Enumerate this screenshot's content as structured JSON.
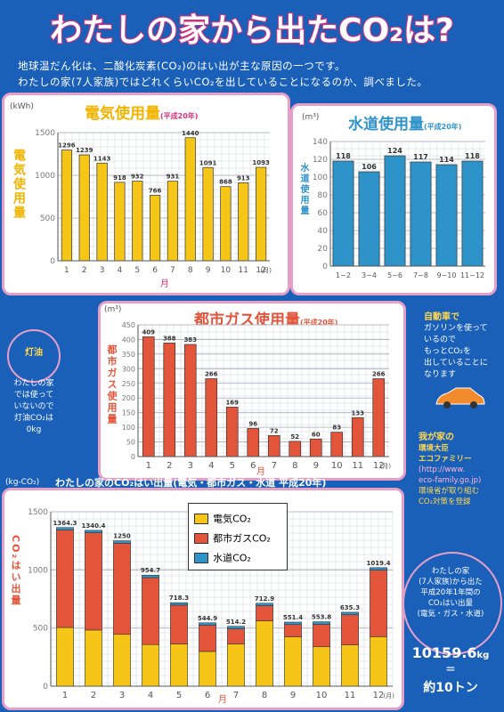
{
  "title": {
    "main": "わたしの家から出たCO₂は?"
  },
  "intro": {
    "line1": "地球温だん化は、二酸化炭素(CO₂)のはい出が主な原因の一つです。",
    "line2": "わたしの家(7人家族)ではどれくらいCO₂を出していることになるのか、調べました。"
  },
  "colors": {
    "electric": "#f5c518",
    "gas": "#e2553a",
    "water": "#2e93c9",
    "border": "#e6a0c8",
    "background": "#1a5fb8"
  },
  "electric": {
    "title": "電気使用量",
    "period": "(平成20年)",
    "unit": "(kWh)",
    "ylabel": "電気使用量",
    "xunit": "(月)",
    "xaxis_label": "月",
    "chart_data": {
      "type": "bar",
      "categories": [
        "1",
        "2",
        "3",
        "4",
        "5",
        "6",
        "7",
        "8",
        "9",
        "10",
        "11",
        "12"
      ],
      "values": [
        1296,
        1239,
        1143,
        918,
        932,
        766,
        931,
        1440,
        1091,
        868,
        913,
        1093
      ],
      "ylim": [
        0,
        1500
      ],
      "yticks": [
        0,
        500,
        1000,
        1500
      ]
    }
  },
  "water": {
    "title": "水道使用量",
    "period": "(平成20年)",
    "unit": "(m³)",
    "ylabel": "水道使用量",
    "chart_data": {
      "type": "bar",
      "categories": [
        "1~2",
        "3~4",
        "5~6",
        "7~8",
        "9~10",
        "11~12"
      ],
      "values": [
        118,
        106,
        124,
        117,
        114,
        118
      ],
      "ylim": [
        0,
        140
      ],
      "yticks": [
        0,
        20,
        40,
        60,
        80,
        100,
        120,
        140
      ]
    }
  },
  "gas": {
    "title": "都市ガス使用量",
    "period": "(平成20年)",
    "unit": "(m³)",
    "ylabel": "都市ガス使用量",
    "xunit": "(月)",
    "xaxis_label": "月",
    "chart_data": {
      "type": "bar",
      "categories": [
        "1",
        "2",
        "3",
        "4",
        "5",
        "6",
        "7",
        "8",
        "9",
        "10",
        "11",
        "12"
      ],
      "values": [
        409,
        388,
        383,
        266,
        169,
        96,
        72,
        52,
        60,
        83,
        133,
        266
      ],
      "ylim": [
        0,
        450
      ],
      "yticks": [
        0,
        50,
        100,
        150,
        200,
        250,
        300,
        350,
        400,
        450
      ]
    }
  },
  "co2": {
    "title": "わたしの家のCO₂はい出量(電気・都市ガス・水道 平成20年)",
    "unit": "(kg-CO₂)",
    "ylabel": "CO₂はい出量",
    "xunit": "(月)",
    "xaxis_label": "月",
    "legend": [
      "電気CO₂",
      "都市ガスCO₂",
      "水道CO₂"
    ],
    "chart_data": {
      "type": "bar",
      "stacked": true,
      "categories": [
        "1",
        "2",
        "3",
        "4",
        "5",
        "6",
        "7",
        "8",
        "9",
        "10",
        "11",
        "12"
      ],
      "totals": [
        "1364.3",
        "1340.4",
        "1250",
        "954.7",
        "718.3",
        "544.9",
        "514.2",
        "712.9",
        "551.4",
        "553.8",
        "635.3",
        "1019.4"
      ],
      "series": [
        {
          "name": "電気CO₂",
          "values": [
            505,
            483,
            446,
            358,
            363,
            299,
            363,
            562,
            425,
            339,
            356,
            426
          ]
        },
        {
          "name": "都市ガスCO₂",
          "values": [
            838,
            836,
            783,
            575,
            334,
            225,
            130,
            130,
            105,
            193,
            258,
            572
          ]
        },
        {
          "name": "水道CO₂",
          "values": [
            21,
            21,
            21,
            22,
            21,
            21,
            21,
            21,
            21,
            22,
            21,
            21
          ]
        }
      ],
      "ylim": [
        0,
        1500
      ],
      "yticks": [
        0,
        500,
        1000,
        1500
      ]
    }
  },
  "kerosene": {
    "title": "灯油",
    "lines": [
      "わたしの家",
      "では使って",
      "いないので",
      "灯油CO₂は",
      "0kg"
    ]
  },
  "car": {
    "lines": [
      "自動車で",
      "ガソリンを使って",
      "いるので",
      "もっとCO₂を",
      "出していることに",
      "なります"
    ]
  },
  "eco": {
    "lines": [
      "我が家の",
      "環境大臣",
      "エコファミリー",
      "(http://www.",
      "eco-family.go.jp)",
      "環境省が取り組む",
      "CO₂対策を登録"
    ]
  },
  "summary": {
    "lines": [
      "わたしの家",
      "(7人家族)から出た",
      "平成20年1年間の",
      "CO₂はい出量",
      "(電気・ガス・水道)"
    ],
    "total": "10159.6",
    "total_unit": "kg",
    "approx": "約10トン"
  }
}
